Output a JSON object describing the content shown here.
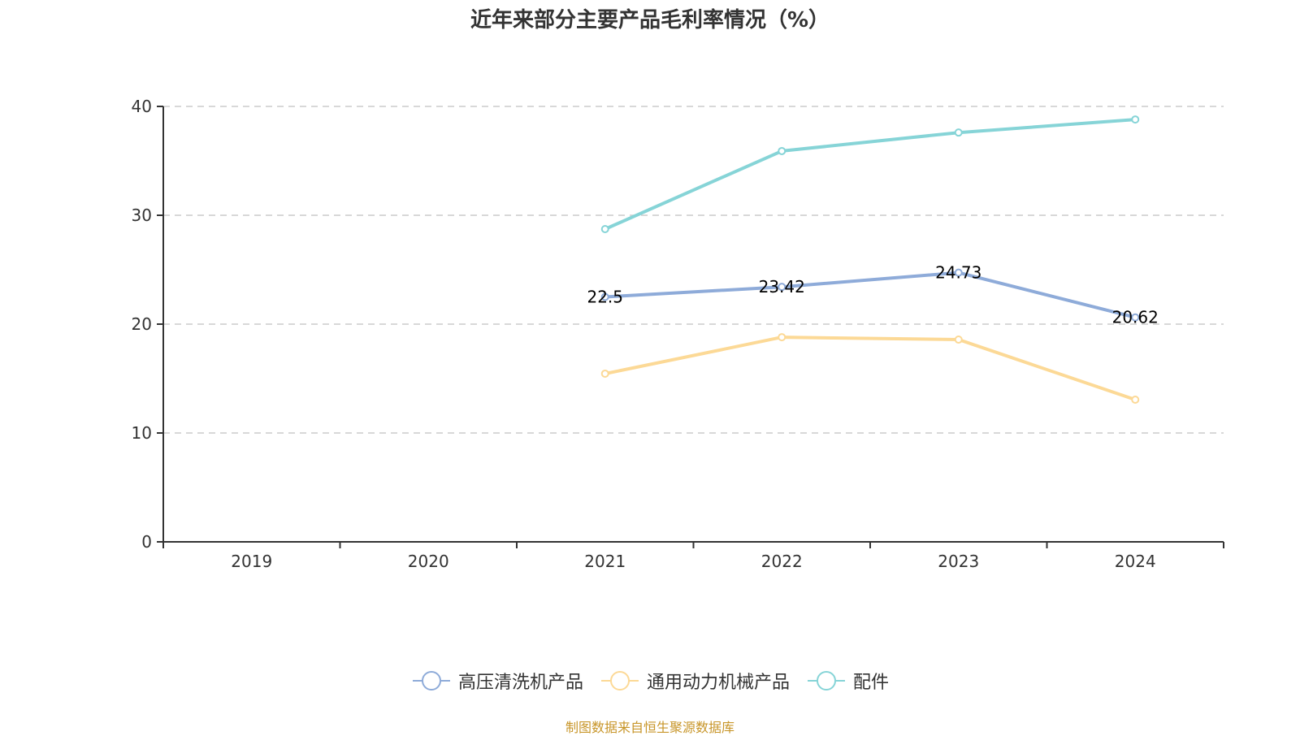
{
  "chart_data": {
    "type": "line",
    "title": "近年来部分主要产品毛利率情况（%）",
    "xlabel": "",
    "ylabel": "",
    "categories": [
      "2019",
      "2020",
      "2021",
      "2022",
      "2023",
      "2024"
    ],
    "ylim": [
      0,
      40
    ],
    "yticks": [
      0,
      10,
      20,
      30,
      40
    ],
    "grid": true,
    "legend_position": "bottom",
    "series": [
      {
        "name": "高压清洗机产品",
        "color": "#8eabd9",
        "values": [
          null,
          null,
          22.5,
          23.42,
          24.73,
          20.62
        ],
        "labels": [
          null,
          null,
          "22.5",
          "23.42",
          "24.73",
          "20.62"
        ]
      },
      {
        "name": "通用动力机械产品",
        "color": "#fcd996",
        "values": [
          null,
          null,
          15.45,
          18.8,
          18.58,
          13.06
        ],
        "labels": [
          null,
          null,
          null,
          null,
          null,
          null
        ]
      },
      {
        "name": "配件",
        "color": "#86d4d7",
        "values": [
          null,
          null,
          28.73,
          35.9,
          37.6,
          38.8
        ],
        "labels": [
          null,
          null,
          null,
          null,
          null,
          null
        ]
      }
    ]
  },
  "footer": {
    "source": "制图数据来自恒生聚源数据库"
  }
}
